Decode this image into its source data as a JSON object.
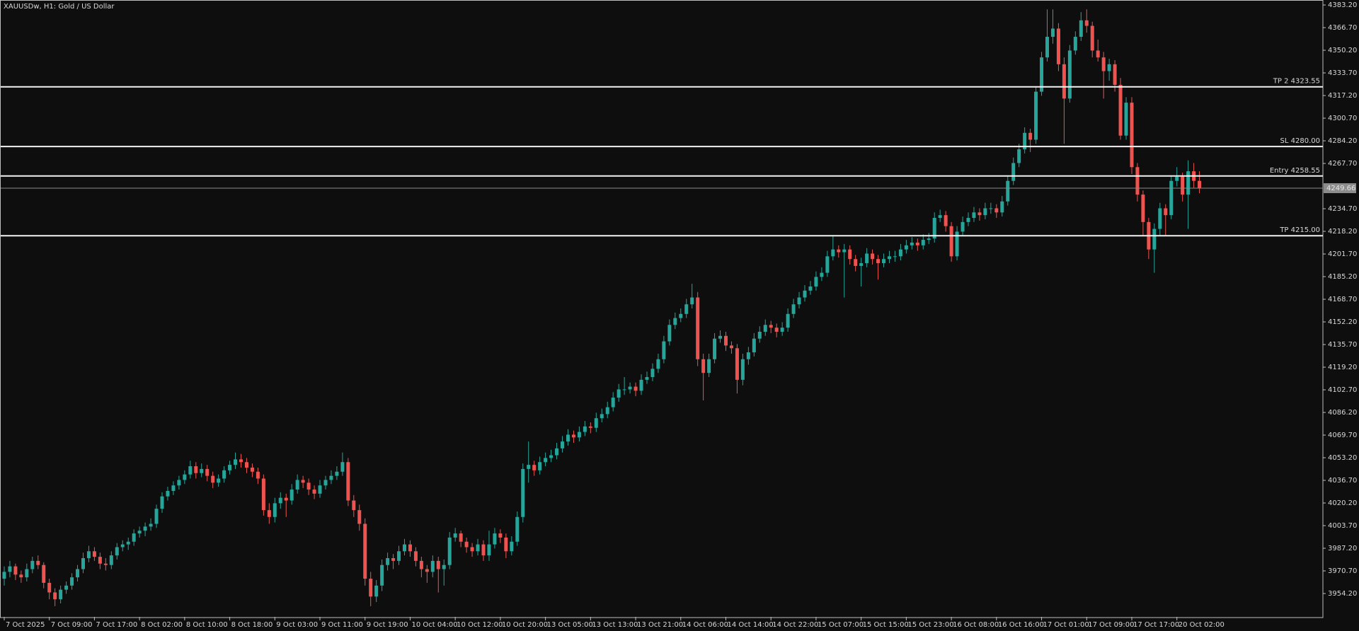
{
  "chart_data": {
    "type": "candlestick",
    "title": "XAUUSDw, H1:  Gold / US Dollar",
    "up_color": "#26a69a",
    "down_color": "#ef5350",
    "xlim": [
      -0.75,
      233.9
    ],
    "ylim": [
      3937.2,
      4385.8
    ],
    "yticks": [
      {
        "value": 3954.2,
        "label": "3954.20"
      },
      {
        "value": 3970.7,
        "label": "3970.70"
      },
      {
        "value": 3987.2,
        "label": "3987.20"
      },
      {
        "value": 4003.7,
        "label": "4003.70"
      },
      {
        "value": 4020.2,
        "label": "4020.20"
      },
      {
        "value": 4036.7,
        "label": "4036.70"
      },
      {
        "value": 4053.2,
        "label": "4053.20"
      },
      {
        "value": 4069.7,
        "label": "4069.70"
      },
      {
        "value": 4086.2,
        "label": "4086.20"
      },
      {
        "value": 4102.7,
        "label": "4102.70"
      },
      {
        "value": 4119.2,
        "label": "4119.20"
      },
      {
        "value": 4135.7,
        "label": "4135.70"
      },
      {
        "value": 4152.2,
        "label": "4152.20"
      },
      {
        "value": 4168.7,
        "label": "4168.70"
      },
      {
        "value": 4185.2,
        "label": "4185.20"
      },
      {
        "value": 4201.7,
        "label": "4201.70"
      },
      {
        "value": 4218.2,
        "label": "4218.20"
      },
      {
        "value": 4234.7,
        "label": "4234.70"
      },
      {
        "value": 4267.7,
        "label": "4267.70"
      },
      {
        "value": 4284.2,
        "label": "4284.20"
      },
      {
        "value": 4300.7,
        "label": "4300.70"
      },
      {
        "value": 4317.2,
        "label": "4317.20"
      },
      {
        "value": 4333.7,
        "label": "4333.70"
      },
      {
        "value": 4350.2,
        "label": "4350.20"
      },
      {
        "value": 4366.7,
        "label": "4366.70"
      },
      {
        "value": 4383.2,
        "label": "4383.20"
      }
    ],
    "xticks": [
      {
        "value": 0,
        "label": "7 Oct 2025"
      },
      {
        "value": 8,
        "label": "7 Oct 09:00"
      },
      {
        "value": 16,
        "label": "7 Oct 17:00"
      },
      {
        "value": 24,
        "label": "8 Oct 02:00"
      },
      {
        "value": 32,
        "label": "8 Oct 10:00"
      },
      {
        "value": 40,
        "label": "8 Oct 18:00"
      },
      {
        "value": 48,
        "label": "9 Oct 03:00"
      },
      {
        "value": 56,
        "label": "9 Oct 11:00"
      },
      {
        "value": 64,
        "label": "9 Oct 19:00"
      },
      {
        "value": 72,
        "label": "10 Oct 04:00"
      },
      {
        "value": 80,
        "label": "10 Oct 12:00"
      },
      {
        "value": 88,
        "label": "10 Oct 20:00"
      },
      {
        "value": 96,
        "label": "13 Oct 05:00"
      },
      {
        "value": 104,
        "label": "13 Oct 13:00"
      },
      {
        "value": 112,
        "label": "13 Oct 21:00"
      },
      {
        "value": 120,
        "label": "14 Oct 06:00"
      },
      {
        "value": 128,
        "label": "14 Oct 14:00"
      },
      {
        "value": 136,
        "label": "14 Oct 22:00"
      },
      {
        "value": 144,
        "label": "15 Oct 07:00"
      },
      {
        "value": 152,
        "label": "15 Oct 15:00"
      },
      {
        "value": 160,
        "label": "15 Oct 23:00"
      },
      {
        "value": 168,
        "label": "16 Oct 08:00"
      },
      {
        "value": 176,
        "label": "16 Oct 16:00"
      },
      {
        "value": 184,
        "label": "17 Oct 01:00"
      },
      {
        "value": 192,
        "label": "17 Oct 09:00"
      },
      {
        "value": 200,
        "label": "17 Oct 17:00"
      },
      {
        "value": 208,
        "label": "20 Oct 02:00"
      }
    ],
    "levels": [
      {
        "value": 4323.55,
        "label": "TP 2 4323.55"
      },
      {
        "value": 4280.0,
        "label": "SL 4280.00"
      },
      {
        "value": 4258.55,
        "label": "Entry 4258.55"
      },
      {
        "value": 4215.0,
        "label": "TP 4215.00"
      }
    ],
    "bid": {
      "value": 4249.66,
      "label": "4249.66"
    },
    "candles": [
      [
        3965,
        3974,
        3960,
        3970
      ],
      [
        3970,
        3978,
        3966,
        3974
      ],
      [
        3974,
        3976,
        3964,
        3968
      ],
      [
        3968,
        3971,
        3962,
        3966
      ],
      [
        3966,
        3976,
        3963,
        3972
      ],
      [
        3972,
        3981,
        3969,
        3978
      ],
      [
        3978,
        3982,
        3972,
        3975
      ],
      [
        3975,
        3977,
        3958,
        3962
      ],
      [
        3962,
        3965,
        3950,
        3955
      ],
      [
        3955,
        3958,
        3945,
        3950
      ],
      [
        3950,
        3960,
        3947,
        3957
      ],
      [
        3957,
        3963,
        3954,
        3960
      ],
      [
        3960,
        3969,
        3957,
        3966
      ],
      [
        3966,
        3975,
        3963,
        3972
      ],
      [
        3972,
        3984,
        3969,
        3980
      ],
      [
        3980,
        3989,
        3977,
        3985
      ],
      [
        3985,
        3988,
        3978,
        3981
      ],
      [
        3981,
        3984,
        3972,
        3976
      ],
      [
        3976,
        3980,
        3971,
        3975
      ],
      [
        3975,
        3985,
        3972,
        3982
      ],
      [
        3982,
        3991,
        3979,
        3988
      ],
      [
        3988,
        3993,
        3985,
        3990
      ],
      [
        3990,
        3995,
        3986,
        3992
      ],
      [
        3992,
        4001,
        3989,
        3998
      ],
      [
        3998,
        4003,
        3995,
        4000
      ],
      [
        4000,
        4006,
        3996,
        4003
      ],
      [
        4003,
        4009,
        4000,
        4005
      ],
      [
        4005,
        4019,
        4002,
        4016
      ],
      [
        4016,
        4028,
        4013,
        4025
      ],
      [
        4025,
        4032,
        4022,
        4029
      ],
      [
        4029,
        4036,
        4026,
        4033
      ],
      [
        4033,
        4040,
        4030,
        4037
      ],
      [
        4037,
        4044,
        4034,
        4041
      ],
      [
        4041,
        4051,
        4038,
        4047
      ],
      [
        4047,
        4050,
        4038,
        4042
      ],
      [
        4042,
        4049,
        4039,
        4045
      ],
      [
        4045,
        4048,
        4036,
        4040
      ],
      [
        4040,
        4043,
        4031,
        4035
      ],
      [
        4035,
        4041,
        4032,
        4038
      ],
      [
        4038,
        4047,
        4035,
        4044
      ],
      [
        4044,
        4051,
        4041,
        4048
      ],
      [
        4048,
        4057,
        4045,
        4052
      ],
      [
        4052,
        4056,
        4046,
        4050
      ],
      [
        4050,
        4053,
        4042,
        4046
      ],
      [
        4046,
        4049,
        4039,
        4043
      ],
      [
        4043,
        4046,
        4034,
        4038
      ],
      [
        4038,
        4041,
        4011,
        4015
      ],
      [
        4015,
        4020,
        4005,
        4010
      ],
      [
        4010,
        4024,
        4006,
        4020
      ],
      [
        4020,
        4028,
        4016,
        4024
      ],
      [
        4024,
        4027,
        4010,
        4022
      ],
      [
        4022,
        4034,
        4019,
        4030
      ],
      [
        4030,
        4041,
        4027,
        4037
      ],
      [
        4037,
        4040,
        4031,
        4035
      ],
      [
        4035,
        4038,
        4026,
        4030
      ],
      [
        4030,
        4033,
        4023,
        4027
      ],
      [
        4027,
        4037,
        4024,
        4033
      ],
      [
        4033,
        4040,
        4030,
        4037
      ],
      [
        4037,
        4044,
        4034,
        4040
      ],
      [
        4040,
        4047,
        4037,
        4043
      ],
      [
        4043,
        4057,
        4040,
        4050
      ],
      [
        4050,
        4053,
        4018,
        4022
      ],
      [
        4022,
        4026,
        4010,
        4015
      ],
      [
        4015,
        4019,
        4000,
        4005
      ],
      [
        4005,
        4009,
        3960,
        3965
      ],
      [
        3965,
        3970,
        3945,
        3952
      ],
      [
        3952,
        3964,
        3948,
        3960
      ],
      [
        3960,
        3979,
        3956,
        3975
      ],
      [
        3975,
        3984,
        3971,
        3980
      ],
      [
        3980,
        3983,
        3972,
        3978
      ],
      [
        3978,
        3989,
        3975,
        3985
      ],
      [
        3985,
        3994,
        3982,
        3990
      ],
      [
        3990,
        3993,
        3981,
        3985
      ],
      [
        3985,
        3988,
        3974,
        3978
      ],
      [
        3978,
        3981,
        3966,
        3972
      ],
      [
        3972,
        3975,
        3962,
        3970
      ],
      [
        3970,
        3982,
        3966,
        3978
      ],
      [
        3978,
        3981,
        3955,
        3972
      ],
      [
        3972,
        3979,
        3960,
        3975
      ],
      [
        3975,
        3999,
        3972,
        3995
      ],
      [
        3995,
        4002,
        3992,
        3998
      ],
      [
        3998,
        4000,
        3988,
        3992
      ],
      [
        3992,
        3995,
        3984,
        3988
      ],
      [
        3988,
        3991,
        3981,
        3985
      ],
      [
        3985,
        3994,
        3982,
        3990
      ],
      [
        3990,
        3993,
        3978,
        3982
      ],
      [
        3982,
        4000,
        3978,
        3990
      ],
      [
        3990,
        4002,
        3987,
        3998
      ],
      [
        3998,
        4001,
        3991,
        3995
      ],
      [
        3995,
        3998,
        3980,
        3985
      ],
      [
        3985,
        3996,
        3982,
        3992
      ],
      [
        3992,
        4014,
        3989,
        4010
      ],
      [
        4010,
        4049,
        4006,
        4045
      ],
      [
        4045,
        4065,
        4035,
        4048
      ],
      [
        4048,
        4051,
        4040,
        4044
      ],
      [
        4044,
        4054,
        4041,
        4050
      ],
      [
        4050,
        4057,
        4047,
        4053
      ],
      [
        4053,
        4059,
        4050,
        4055
      ],
      [
        4055,
        4064,
        4052,
        4060
      ],
      [
        4060,
        4069,
        4057,
        4065
      ],
      [
        4065,
        4074,
        4062,
        4070
      ],
      [
        4070,
        4073,
        4064,
        4068
      ],
      [
        4068,
        4076,
        4065,
        4072
      ],
      [
        4072,
        4080,
        4069,
        4076
      ],
      [
        4076,
        4079,
        4071,
        4075
      ],
      [
        4075,
        4086,
        4072,
        4082
      ],
      [
        4082,
        4089,
        4079,
        4085
      ],
      [
        4085,
        4094,
        4082,
        4090
      ],
      [
        4090,
        4101,
        4087,
        4097
      ],
      [
        4097,
        4107,
        4094,
        4103
      ],
      [
        4103,
        4112,
        4099,
        4103
      ],
      [
        4103,
        4108,
        4100,
        4105
      ],
      [
        4105,
        4108,
        4098,
        4102
      ],
      [
        4102,
        4114,
        4099,
        4110
      ],
      [
        4110,
        4116,
        4107,
        4112
      ],
      [
        4112,
        4122,
        4109,
        4118
      ],
      [
        4118,
        4129,
        4115,
        4125
      ],
      [
        4125,
        4142,
        4122,
        4138
      ],
      [
        4138,
        4154,
        4135,
        4150
      ],
      [
        4150,
        4159,
        4147,
        4155
      ],
      [
        4155,
        4162,
        4152,
        4158
      ],
      [
        4158,
        4169,
        4155,
        4165
      ],
      [
        4165,
        4180,
        4162,
        4170
      ],
      [
        4170,
        4174,
        4120,
        4125
      ],
      [
        4125,
        4129,
        4095,
        4115
      ],
      [
        4115,
        4129,
        4112,
        4125
      ],
      [
        4125,
        4144,
        4122,
        4140
      ],
      [
        4140,
        4146,
        4137,
        4142
      ],
      [
        4142,
        4145,
        4131,
        4135
      ],
      [
        4135,
        4138,
        4129,
        4133
      ],
      [
        4133,
        4136,
        4100,
        4110
      ],
      [
        4110,
        4129,
        4106,
        4125
      ],
      [
        4125,
        4134,
        4121,
        4130
      ],
      [
        4130,
        4144,
        4127,
        4140
      ],
      [
        4140,
        4149,
        4137,
        4145
      ],
      [
        4145,
        4154,
        4142,
        4150
      ],
      [
        4150,
        4153,
        4144,
        4148
      ],
      [
        4148,
        4151,
        4141,
        4145
      ],
      [
        4145,
        4152,
        4142,
        4148
      ],
      [
        4148,
        4162,
        4145,
        4158
      ],
      [
        4158,
        4169,
        4155,
        4165
      ],
      [
        4165,
        4174,
        4162,
        4170
      ],
      [
        4170,
        4179,
        4167,
        4175
      ],
      [
        4175,
        4182,
        4172,
        4178
      ],
      [
        4178,
        4189,
        4175,
        4185
      ],
      [
        4185,
        4192,
        4182,
        4188
      ],
      [
        4188,
        4204,
        4185,
        4200
      ],
      [
        4200,
        4215,
        4197,
        4205
      ],
      [
        4205,
        4208,
        4199,
        4203
      ],
      [
        4203,
        4209,
        4170,
        4205
      ],
      [
        4205,
        4208,
        4194,
        4198
      ],
      [
        4198,
        4201,
        4189,
        4193
      ],
      [
        4193,
        4199,
        4178,
        4195
      ],
      [
        4195,
        4206,
        4192,
        4202
      ],
      [
        4202,
        4205,
        4194,
        4198
      ],
      [
        4198,
        4201,
        4183,
        4195
      ],
      [
        4195,
        4202,
        4192,
        4198
      ],
      [
        4198,
        4204,
        4195,
        4200
      ],
      [
        4200,
        4204,
        4196,
        4200
      ],
      [
        4200,
        4209,
        4197,
        4205
      ],
      [
        4205,
        4212,
        4202,
        4208
      ],
      [
        4208,
        4214,
        4205,
        4210
      ],
      [
        4210,
        4213,
        4204,
        4208
      ],
      [
        4208,
        4216,
        4205,
        4212
      ],
      [
        4212,
        4217,
        4209,
        4213
      ],
      [
        4213,
        4232,
        4210,
        4228
      ],
      [
        4228,
        4234,
        4225,
        4230
      ],
      [
        4230,
        4233,
        4218,
        4222
      ],
      [
        4222,
        4225,
        4196,
        4200
      ],
      [
        4200,
        4222,
        4197,
        4218
      ],
      [
        4218,
        4229,
        4215,
        4225
      ],
      [
        4225,
        4232,
        4222,
        4228
      ],
      [
        4228,
        4236,
        4225,
        4232
      ],
      [
        4232,
        4235,
        4226,
        4230
      ],
      [
        4230,
        4239,
        4227,
        4235
      ],
      [
        4235,
        4239,
        4231,
        4235
      ],
      [
        4235,
        4238,
        4228,
        4232
      ],
      [
        4232,
        4244,
        4229,
        4240
      ],
      [
        4240,
        4259,
        4237,
        4255
      ],
      [
        4255,
        4272,
        4252,
        4268
      ],
      [
        4268,
        4282,
        4265,
        4278
      ],
      [
        4278,
        4294,
        4275,
        4290
      ],
      [
        4290,
        4293,
        4276,
        4285
      ],
      [
        4285,
        4324,
        4282,
        4320
      ],
      [
        4320,
        4349,
        4317,
        4345
      ],
      [
        4345,
        4380,
        4342,
        4360
      ],
      [
        4360,
        4380,
        4355,
        4366
      ],
      [
        4366,
        4370,
        4335,
        4340
      ],
      [
        4340,
        4345,
        4282,
        4315
      ],
      [
        4315,
        4354,
        4312,
        4350
      ],
      [
        4350,
        4364,
        4347,
        4360
      ],
      [
        4360,
        4378,
        4357,
        4372
      ],
      [
        4372,
        4380,
        4363,
        4368
      ],
      [
        4368,
        4371,
        4345,
        4350
      ],
      [
        4350,
        4358,
        4342,
        4345
      ],
      [
        4345,
        4349,
        4315,
        4335
      ],
      [
        4335,
        4344,
        4328,
        4340
      ],
      [
        4340,
        4343,
        4320,
        4325
      ],
      [
        4325,
        4330,
        4285,
        4288
      ],
      [
        4288,
        4316,
        4285,
        4312
      ],
      [
        4312,
        4316,
        4260,
        4265
      ],
      [
        4265,
        4268,
        4240,
        4245
      ],
      [
        4245,
        4248,
        4215,
        4225
      ],
      [
        4225,
        4228,
        4198,
        4205
      ],
      [
        4205,
        4224,
        4188,
        4220
      ],
      [
        4220,
        4239,
        4215,
        4235
      ],
      [
        4235,
        4238,
        4215,
        4230
      ],
      [
        4230,
        4259,
        4227,
        4255
      ],
      [
        4255,
        4265,
        4251,
        4258
      ],
      [
        4258,
        4261,
        4240,
        4245
      ],
      [
        4245,
        4270,
        4220,
        4262
      ],
      [
        4262,
        4268,
        4250,
        4255
      ],
      [
        4255,
        4262,
        4246,
        4249.66
      ]
    ]
  }
}
